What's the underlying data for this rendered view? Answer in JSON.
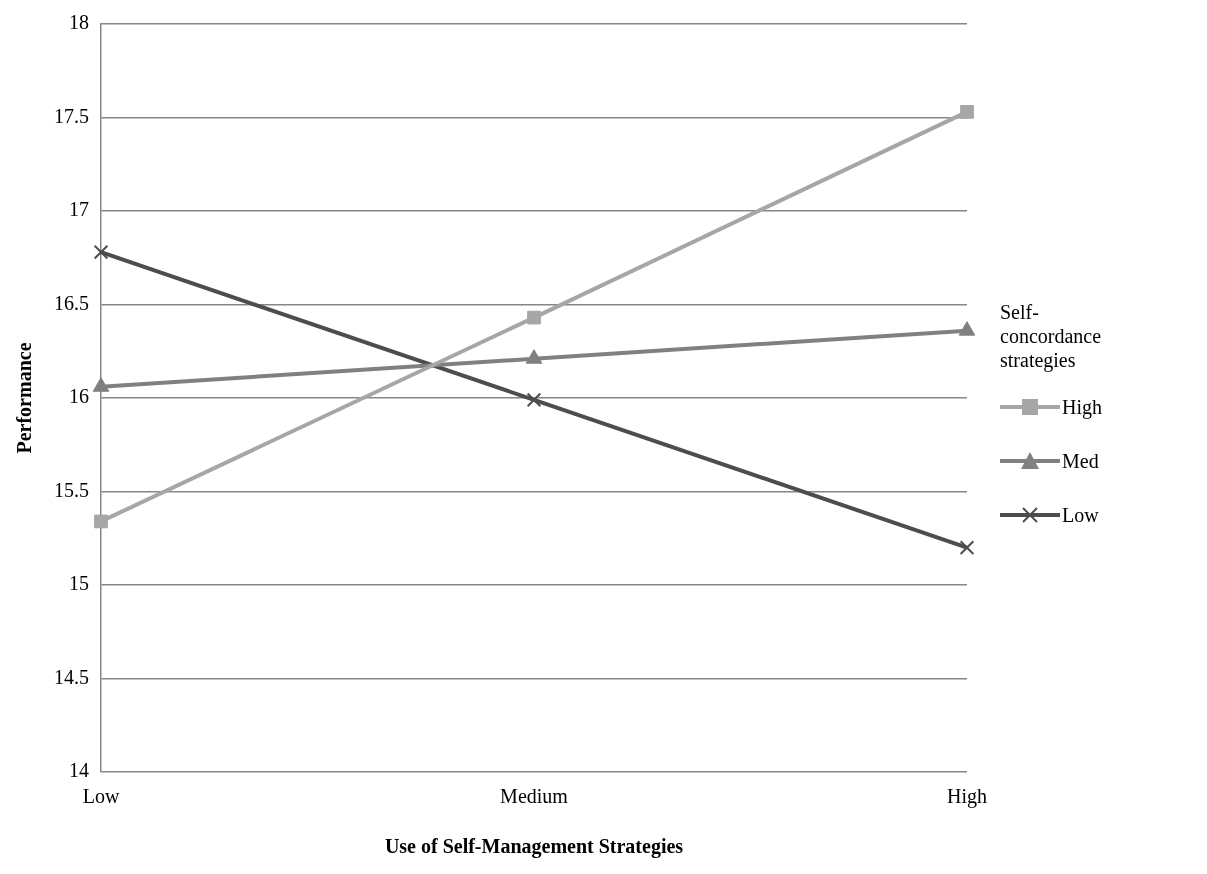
{
  "chart_data": {
    "type": "line",
    "xlabel": "Use of Self-Management Strategies",
    "ylabel": "Performance",
    "legend_title": "Self-concordance strategies",
    "categories": [
      "Low",
      "Medium",
      "High"
    ],
    "series": [
      {
        "name": "High",
        "color": "#a6a6a6",
        "marker": "square",
        "values": [
          15.34,
          16.43,
          17.53
        ]
      },
      {
        "name": "Med",
        "color": "#808080",
        "marker": "triangle",
        "values": [
          16.06,
          16.21,
          16.36
        ]
      },
      {
        "name": "Low",
        "color": "#4d4d4d",
        "marker": "cross",
        "values": [
          16.78,
          15.99,
          15.2
        ]
      }
    ],
    "ylim": [
      14,
      18
    ],
    "yticks": [
      14,
      14.5,
      15,
      15.5,
      16,
      16.5,
      17,
      17.5,
      18
    ],
    "grid": "y",
    "legend": "right",
    "line_style": "solid"
  }
}
